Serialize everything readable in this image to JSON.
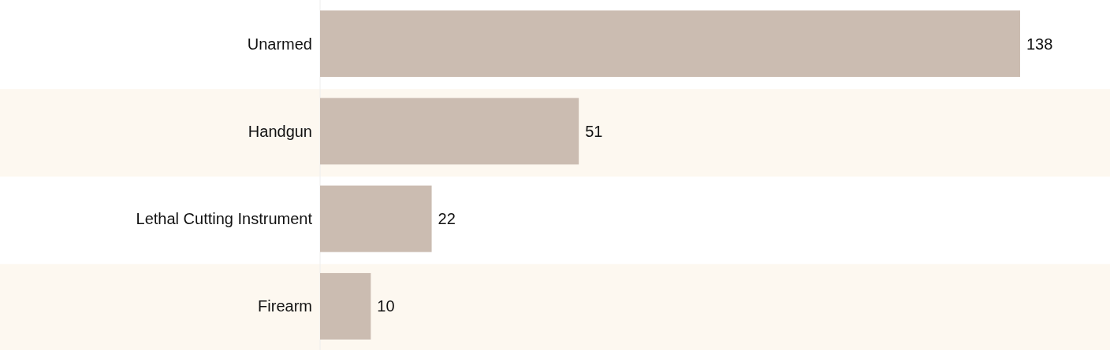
{
  "chart_data": {
    "type": "bar",
    "orientation": "horizontal",
    "categories": [
      "Unarmed",
      "Handgun",
      "Lethal Cutting Instrument",
      "Firearm"
    ],
    "values": [
      138,
      51,
      22,
      10
    ],
    "color": "#cbbcb1",
    "data_labels": true
  }
}
